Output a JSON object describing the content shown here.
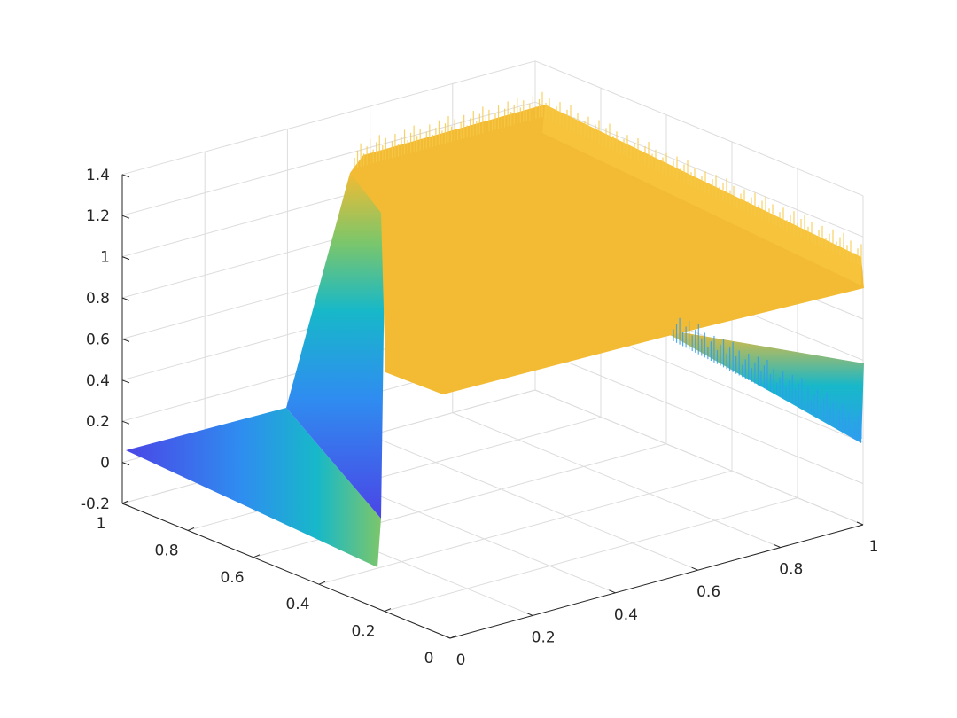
{
  "chart_data": {
    "type": "surface",
    "title": "",
    "xlabel": "",
    "ylabel": "",
    "zlabel": "",
    "xlim": [
      0,
      1
    ],
    "ylim": [
      0,
      1
    ],
    "zlim": [
      -0.2,
      1.4
    ],
    "x_ticks": [
      "0",
      "0.2",
      "0.4",
      "0.6",
      "0.8",
      "1"
    ],
    "y_ticks": [
      "0",
      "0.2",
      "0.4",
      "0.6",
      "0.8",
      "1"
    ],
    "z_ticks": [
      "-0.2",
      "0",
      "0.2",
      "0.4",
      "0.6",
      "0.8",
      "1",
      "1.2",
      "1.4"
    ],
    "grid": true,
    "colormap": "parula",
    "colors": {
      "low": "#4a45e6",
      "mid": "#17b8c9",
      "high": "#f2bb33"
    },
    "surface": {
      "description_points": [
        {
          "x": 0.0,
          "y": 0.0,
          "z": 1.0
        },
        {
          "x": 1.0,
          "y": 0.0,
          "z": 1.0
        },
        {
          "x": 0.0,
          "y": 0.3,
          "z": 1.0
        },
        {
          "x": 1.0,
          "y": 0.3,
          "z": 1.0
        },
        {
          "x": 0.0,
          "y": 0.4,
          "z": 0.0
        },
        {
          "x": 0.0,
          "y": 1.0,
          "z": 0.0
        },
        {
          "x": 1.0,
          "y": 1.0,
          "z": 0.4
        }
      ]
    }
  }
}
